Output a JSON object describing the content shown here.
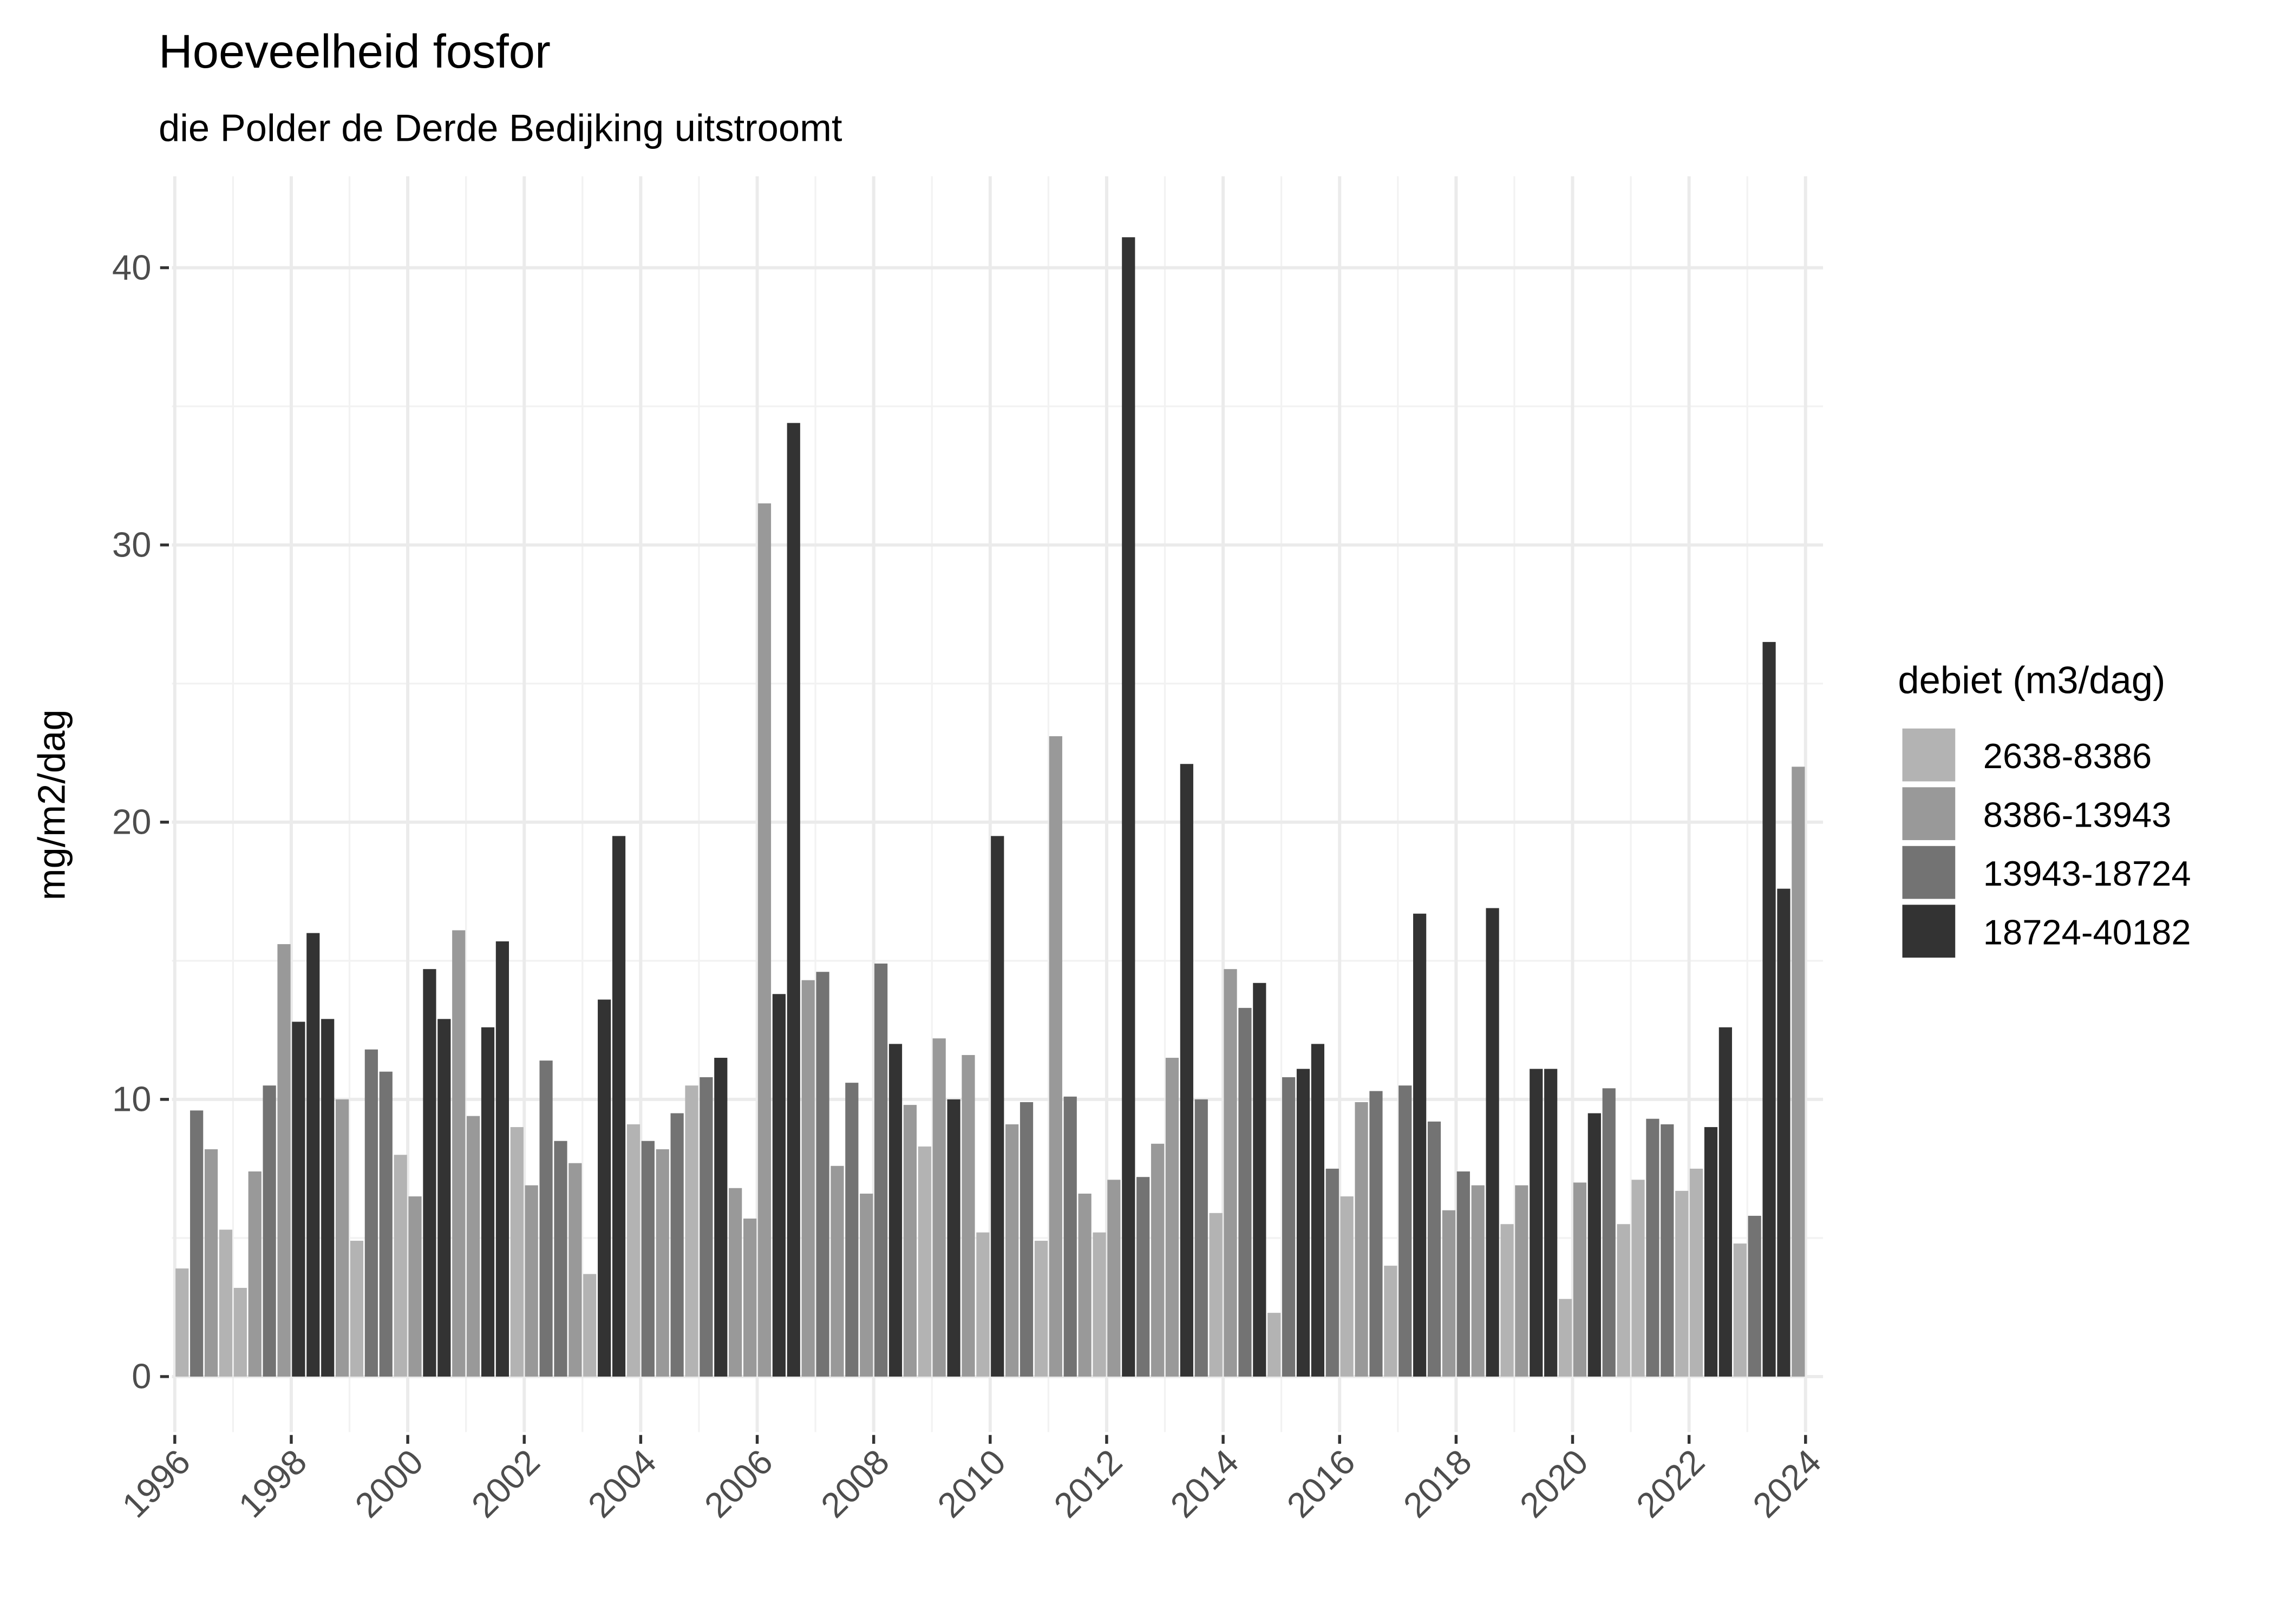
{
  "chart_data": {
    "type": "bar",
    "title": "Hoeveelheid fosfor",
    "subtitle": "die Polder de Derde Bedijking uitstroomt",
    "y_label": "mg/m2/dag",
    "legend_title": "debiet (m3/dag)",
    "legend_position": "right",
    "grid": true,
    "xlim": [
      1995.95,
      2024.3
    ],
    "xticks": [
      1996,
      1998,
      2000,
      2002,
      2004,
      2006,
      2008,
      2010,
      2012,
      2014,
      2016,
      2018,
      2020,
      2022,
      2024
    ],
    "ylim": [
      -2,
      43.3
    ],
    "yticks": [
      0,
      10,
      20,
      30,
      40
    ],
    "bar_width": 0.225,
    "series": [
      {
        "name": "2638-8386",
        "color": "#b3b3b3",
        "x": [
          1996.125,
          1996.875,
          1997.125,
          1999.125,
          1999.875,
          2001.875,
          2003.125,
          2003.875,
          2004.875,
          2008.875,
          2009.875,
          2010.875,
          2011.875,
          2013.875,
          2014.875,
          2016.125,
          2016.875,
          2018.875,
          2019.875,
          2020.875,
          2021.125,
          2021.875,
          2022.125,
          2022.875
        ],
        "values": [
          3.9,
          5.3,
          3.2,
          4.9,
          8.0,
          9.0,
          3.7,
          9.1,
          10.5,
          8.3,
          5.2,
          4.9,
          5.2,
          5.9,
          2.3,
          6.5,
          4.0,
          5.5,
          2.8,
          5.5,
          7.1,
          6.7,
          7.5,
          4.8
        ]
      },
      {
        "name": "8386-13943",
        "color": "#999999",
        "x": [
          1996.625,
          1997.375,
          1997.875,
          1998.875,
          2000.125,
          2000.875,
          2001.125,
          2002.125,
          2002.875,
          2004.375,
          2005.625,
          2005.875,
          2006.125,
          2006.875,
          2007.375,
          2007.875,
          2008.625,
          2009.125,
          2009.625,
          2010.375,
          2011.125,
          2011.625,
          2012.125,
          2012.875,
          2013.125,
          2014.125,
          2016.375,
          2017.875,
          2018.375,
          2019.125,
          2020.125,
          2023.875
        ],
        "values": [
          8.2,
          7.4,
          15.6,
          10.0,
          6.5,
          16.1,
          9.4,
          6.9,
          7.7,
          8.2,
          6.8,
          5.7,
          31.5,
          14.3,
          7.6,
          6.6,
          9.8,
          12.2,
          11.6,
          9.1,
          23.1,
          6.6,
          7.1,
          8.4,
          11.5,
          14.7,
          9.9,
          6.0,
          6.9,
          6.9,
          7.0,
          22.0
        ]
      },
      {
        "name": "13943-18724",
        "color": "#737373",
        "x": [
          1996.375,
          1997.625,
          1999.375,
          1999.625,
          2002.375,
          2002.625,
          2004.125,
          2004.625,
          2005.125,
          2007.125,
          2007.625,
          2008.125,
          2010.625,
          2011.375,
          2012.625,
          2013.625,
          2014.375,
          2015.125,
          2015.875,
          2016.625,
          2017.125,
          2017.625,
          2018.125,
          2020.625,
          2021.375,
          2021.625,
          2023.125
        ],
        "values": [
          9.6,
          10.5,
          11.8,
          11.0,
          11.4,
          8.5,
          8.5,
          9.5,
          10.8,
          14.6,
          10.6,
          14.9,
          9.9,
          10.1,
          7.2,
          10.0,
          13.3,
          10.8,
          7.5,
          10.3,
          10.5,
          9.2,
          7.4,
          10.4,
          9.3,
          9.1,
          5.8
        ]
      },
      {
        "name": "18724-40182",
        "color": "#333333",
        "x": [
          1998.125,
          1998.375,
          1998.625,
          2000.375,
          2000.625,
          2001.375,
          2001.625,
          2003.375,
          2003.625,
          2005.375,
          2006.375,
          2006.625,
          2008.375,
          2009.375,
          2010.125,
          2012.375,
          2013.375,
          2014.625,
          2015.375,
          2015.625,
          2017.375,
          2018.625,
          2019.375,
          2019.625,
          2020.375,
          2022.375,
          2022.625,
          2023.375,
          2023.625
        ],
        "values": [
          12.8,
          16.0,
          12.9,
          14.7,
          12.9,
          12.6,
          15.7,
          13.6,
          19.5,
          11.5,
          13.8,
          34.4,
          12.0,
          10.0,
          19.5,
          41.1,
          22.1,
          14.2,
          11.1,
          12.0,
          16.7,
          16.9,
          11.1,
          11.1,
          9.5,
          9.0,
          12.6,
          26.5,
          17.6
        ]
      }
    ]
  }
}
